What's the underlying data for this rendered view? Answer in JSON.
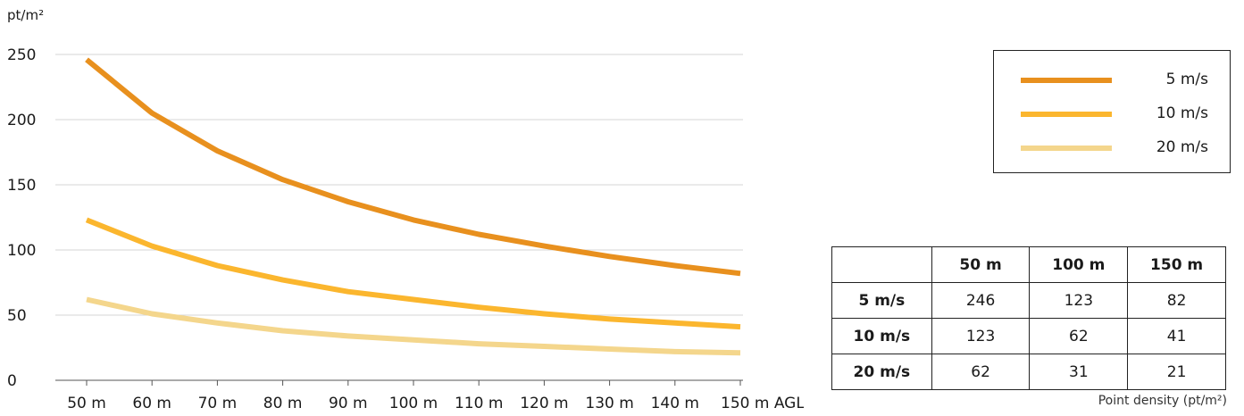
{
  "chart_data": {
    "type": "line",
    "ylabel": "pt/m²",
    "x": [
      50,
      60,
      70,
      80,
      90,
      100,
      110,
      120,
      130,
      140,
      150
    ],
    "x_tick_labels": [
      "50 m",
      "60 m",
      "70 m",
      "80 m",
      "90 m",
      "100 m",
      "110 m",
      "120 m",
      "130 m",
      "140 m",
      "150 m AGL"
    ],
    "ylim": [
      0,
      250
    ],
    "y_ticks": [
      0,
      50,
      100,
      150,
      200,
      250
    ],
    "grid": "horizontal",
    "series": [
      {
        "name": "5 m/s",
        "color": "#e8901e",
        "values": [
          246,
          205,
          176,
          154,
          137,
          123,
          112,
          103,
          95,
          88,
          82
        ]
      },
      {
        "name": "10 m/s",
        "color": "#fbb62e",
        "values": [
          123,
          103,
          88,
          77,
          68,
          62,
          56,
          51,
          47,
          44,
          41
        ]
      },
      {
        "name": "20 m/s",
        "color": "#f4d68c",
        "values": [
          62,
          51,
          44,
          38,
          34,
          31,
          28,
          26,
          24,
          22,
          21
        ]
      }
    ],
    "legend_position": "top-right"
  },
  "legend": [
    {
      "label": "5 m/s",
      "color": "#e8901e"
    },
    {
      "label": "10 m/s",
      "color": "#fbb62e"
    },
    {
      "label": "20 m/s",
      "color": "#f4d68c"
    }
  ],
  "table": {
    "headers": [
      "",
      "50 m",
      "100 m",
      "150 m"
    ],
    "rows": [
      {
        "label": "5 m/s",
        "values": [
          "246",
          "123",
          "82"
        ]
      },
      {
        "label": "10 m/s",
        "values": [
          "123",
          "62",
          "41"
        ]
      },
      {
        "label": "20 m/s",
        "values": [
          "62",
          "31",
          "21"
        ]
      }
    ]
  },
  "caption": "Point density (pt/m²)"
}
